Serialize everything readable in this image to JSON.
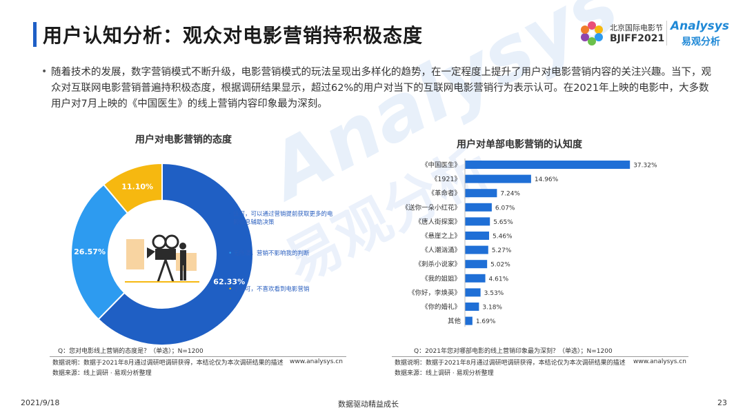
{
  "header": {
    "title": "用户认知分析：观众对电影营销持积极态度",
    "logo_bjiff_line1": "北京国际电影节",
    "logo_bjiff_line2": "BJIFF2021",
    "logo_analysys": "Analysys",
    "logo_analysys_cn": "易观分析"
  },
  "intro": {
    "text": "随着技术的发展，数字营销模式不断升级，电影营销模式的玩法呈现出多样化的趋势，在一定程度上提升了用户对电影营销内容的关注兴趣。当下，观众对互联网电影营销普遍持积极态度，根据调研结果显示，超过62%的用户对当下的互联网电影营销行为表示认可。在2021年上映的电影中，大多数用户对7月上映的《中国医生》的线上营销内容印象最为深刻。"
  },
  "watermark": {
    "text": "Analysys",
    "text_cn": "易观分析"
  },
  "chart_data": [
    {
      "type": "pie",
      "title": "用户对电影营销的态度",
      "slices": [
        {
          "label": "认可，可以通过营销提前获取更多的电影信息辅助决策",
          "value": 62.33,
          "value_label": "62.33%",
          "color": "#1f5fc4"
        },
        {
          "label": "无所谓，营销不影响我的判断",
          "value": 26.57,
          "value_label": "26.57%",
          "color": "#2d9bf0"
        },
        {
          "label": "不认可，不喜欢看到电影营销",
          "value": 11.1,
          "value_label": "11.10%",
          "color": "#f6b810"
        }
      ],
      "legend_position": "right",
      "question": "Q：您对电影线上营销的态度是？（单选）；N=1200"
    },
    {
      "type": "bar",
      "orientation": "horizontal",
      "title": "用户对单部电影营销的认知度",
      "categories": [
        "《中国医生》",
        "《1921》",
        "《革命者》",
        "《送你一朵小红花》",
        "《唐人街探案》",
        "《悬崖之上》",
        "《人潮汹涌》",
        "《刺杀小说家》",
        "《我的姐姐》",
        "《你好，李焕英》",
        "《你的婚礼》",
        "其他"
      ],
      "values": [
        37.32,
        14.96,
        7.24,
        6.07,
        5.65,
        5.46,
        5.27,
        5.02,
        4.61,
        3.53,
        3.18,
        1.69
      ],
      "value_labels": [
        "37.32%",
        "14.96%",
        "7.24%",
        "6.07%",
        "5.65%",
        "5.46%",
        "5.27%",
        "5.02%",
        "4.61%",
        "3.53%",
        "3.18%",
        "1.69%"
      ],
      "color": "#1f6fd6",
      "xlim": [
        0,
        40
      ],
      "question": "Q：2021年您对哪部电影的线上营销印象最为深刻？（单选）；N=1200"
    }
  ],
  "footnotes": {
    "data_note": "数据说明：数据于2021年8月通过调研吧调研获得，本结论仅为本次调研结果的描述",
    "data_source": "数据来源：线上调研 · 易观分析整理",
    "url": "www.analysys.cn"
  },
  "page_footer": {
    "date": "2021/9/18",
    "slogan": "数据驱动精益成长",
    "page_number": "23"
  }
}
